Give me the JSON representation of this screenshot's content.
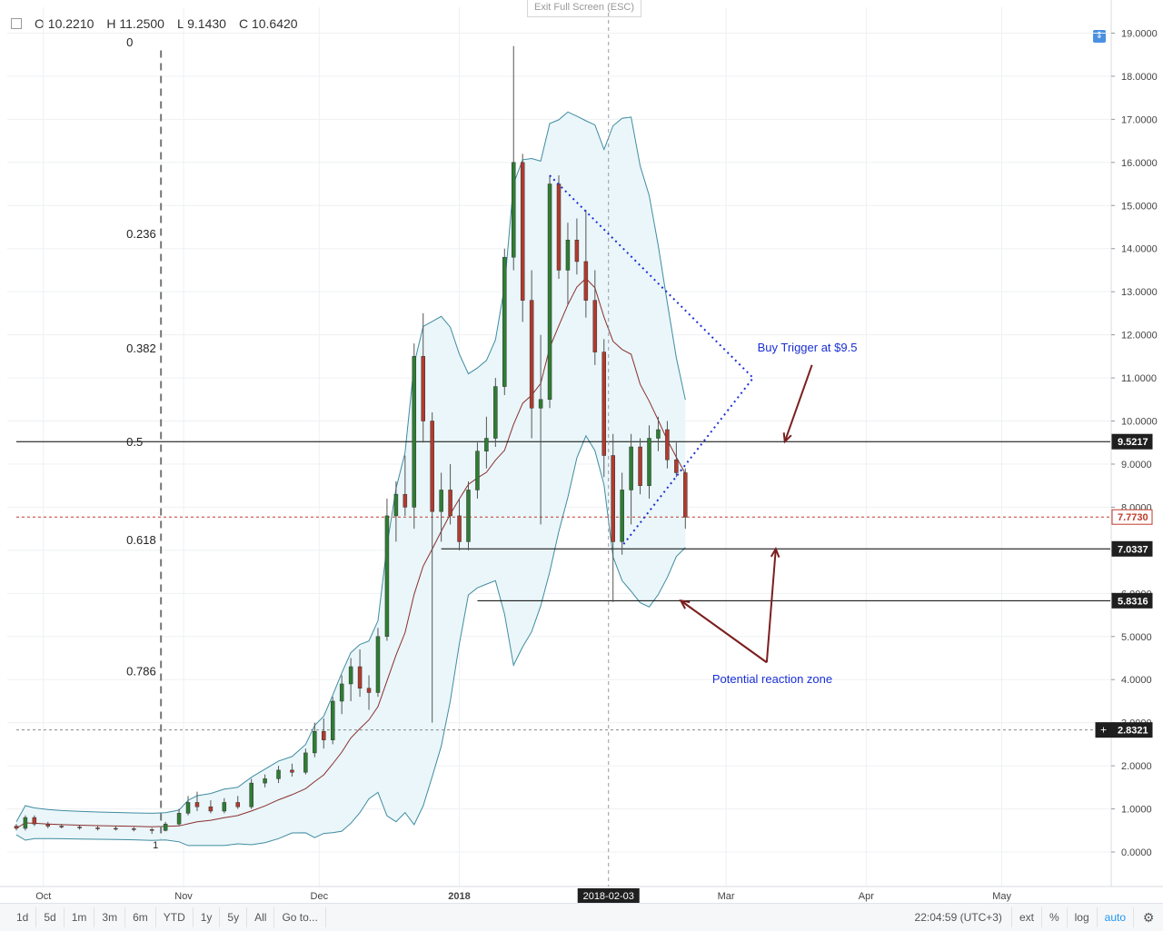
{
  "ohlc": {
    "open": "O 10.2210",
    "high": "H 11.2500",
    "low": "L 9.1430",
    "close": "C 10.6420"
  },
  "exit_fullscreen": "Exit Full Screen (ESC)",
  "scale_icon": "up-down-arrows-icon",
  "toolbar": {
    "ranges": [
      "1d",
      "5d",
      "1m",
      "3m",
      "6m",
      "YTD",
      "1y",
      "5y",
      "All"
    ],
    "goto": "Go to...",
    "time": "22:04:59 (UTC+3)",
    "ext": "ext",
    "percent": "%",
    "log": "log",
    "auto": "auto",
    "settings_icon": "gear-icon"
  },
  "chart_data": {
    "type": "candlestick",
    "y_ticks": [
      "0.0000",
      "1.0000",
      "2.0000",
      "3.0000",
      "4.0000",
      "5.0000",
      "6.0000",
      "7.0000",
      "8.0000",
      "9.0000",
      "10.0000",
      "11.0000",
      "12.0000",
      "13.0000",
      "14.0000",
      "15.0000",
      "16.0000",
      "17.0000",
      "18.0000",
      "19.0000"
    ],
    "ylim": [
      -0.8,
      19.6
    ],
    "x_labels": [
      {
        "label": "Oct",
        "date": "2017-10-01"
      },
      {
        "label": "Nov",
        "date": "2017-11-01"
      },
      {
        "label": "Dec",
        "date": "2017-12-01"
      },
      {
        "label": "2018",
        "date": "2018-01-01"
      },
      {
        "label": "Mar",
        "date": "2018-03-01"
      },
      {
        "label": "Apr",
        "date": "2018-04-01"
      },
      {
        "label": "May",
        "date": "2018-05-01"
      }
    ],
    "cursor_date": "2018-02-03",
    "cursor_x_date": "2018-02-03",
    "price_labels": [
      {
        "text": "9.5217",
        "value": 9.5217,
        "style": "dark"
      },
      {
        "text": "7.7730",
        "value": 7.773,
        "style": "red"
      },
      {
        "text": "7.0337",
        "value": 7.0337,
        "style": "dark"
      },
      {
        "text": "5.8316",
        "value": 5.8316,
        "style": "dark"
      },
      {
        "text": "2.8321",
        "value": 2.8321,
        "style": "cursor"
      }
    ],
    "fib_levels": [
      {
        "label": "0",
        "value": 18.8
      },
      {
        "label": "0.236",
        "value": 14.35
      },
      {
        "label": "0.382",
        "value": 11.7
      },
      {
        "label": "0.5",
        "value": 9.5217
      },
      {
        "label": "0.618",
        "value": 7.25
      },
      {
        "label": "0.786",
        "value": 4.2
      }
    ],
    "hlines": [
      {
        "value": 9.5217,
        "from": "2017-09-25",
        "to": "2018-05-25",
        "color": "#000000"
      },
      {
        "value": 7.0337,
        "from": "2017-12-28",
        "to": "2018-05-25",
        "color": "#000000"
      },
      {
        "value": 5.8316,
        "from": "2018-01-05",
        "to": "2018-05-25",
        "color": "#000000"
      },
      {
        "value": 7.773,
        "from": "2017-09-25",
        "to": "2018-05-25",
        "color": "#c0392b",
        "dash": true
      },
      {
        "value": 2.8321,
        "from": "2017-09-25",
        "to": "2018-05-25",
        "color": "#888888",
        "dash": true
      }
    ],
    "annotations": [
      {
        "text": "Buy Trigger at $9.5",
        "date": "2018-03-20",
        "value": 11.7
      },
      {
        "text": "Potential reaction zone",
        "date": "2018-03-10",
        "value": 4.0
      }
    ],
    "candles": [
      {
        "t": "2017-09-25",
        "o": 0.6,
        "h": 0.65,
        "l": 0.5,
        "c": 0.55
      },
      {
        "t": "2017-09-27",
        "o": 0.55,
        "h": 0.85,
        "l": 0.5,
        "c": 0.8
      },
      {
        "t": "2017-09-29",
        "o": 0.8,
        "h": 0.85,
        "l": 0.6,
        "c": 0.65
      },
      {
        "t": "2017-10-02",
        "o": 0.65,
        "h": 0.7,
        "l": 0.55,
        "c": 0.6
      },
      {
        "t": "2017-10-05",
        "o": 0.6,
        "h": 0.65,
        "l": 0.55,
        "c": 0.58
      },
      {
        "t": "2017-10-09",
        "o": 0.58,
        "h": 0.62,
        "l": 0.52,
        "c": 0.56
      },
      {
        "t": "2017-10-13",
        "o": 0.56,
        "h": 0.6,
        "l": 0.5,
        "c": 0.55
      },
      {
        "t": "2017-10-17",
        "o": 0.55,
        "h": 0.6,
        "l": 0.5,
        "c": 0.54
      },
      {
        "t": "2017-10-21",
        "o": 0.54,
        "h": 0.58,
        "l": 0.48,
        "c": 0.52
      },
      {
        "t": "2017-10-25",
        "o": 0.52,
        "h": 0.56,
        "l": 0.42,
        "c": 0.5
      },
      {
        "t": "2017-10-28",
        "o": 0.5,
        "h": 0.7,
        "l": 0.48,
        "c": 0.65
      },
      {
        "t": "2017-10-31",
        "o": 0.65,
        "h": 1.0,
        "l": 0.6,
        "c": 0.9
      },
      {
        "t": "2017-11-02",
        "o": 0.9,
        "h": 1.3,
        "l": 0.85,
        "c": 1.15
      },
      {
        "t": "2017-11-04",
        "o": 1.15,
        "h": 1.4,
        "l": 0.95,
        "c": 1.05
      },
      {
        "t": "2017-11-07",
        "o": 1.05,
        "h": 1.2,
        "l": 0.9,
        "c": 0.95
      },
      {
        "t": "2017-11-10",
        "o": 0.95,
        "h": 1.25,
        "l": 0.9,
        "c": 1.15
      },
      {
        "t": "2017-11-13",
        "o": 1.15,
        "h": 1.3,
        "l": 1.0,
        "c": 1.05
      },
      {
        "t": "2017-11-16",
        "o": 1.05,
        "h": 1.7,
        "l": 1.0,
        "c": 1.6
      },
      {
        "t": "2017-11-19",
        "o": 1.6,
        "h": 1.8,
        "l": 1.5,
        "c": 1.7
      },
      {
        "t": "2017-11-22",
        "o": 1.7,
        "h": 2.0,
        "l": 1.6,
        "c": 1.9
      },
      {
        "t": "2017-11-25",
        "o": 1.9,
        "h": 2.05,
        "l": 1.75,
        "c": 1.85
      },
      {
        "t": "2017-11-28",
        "o": 1.85,
        "h": 2.4,
        "l": 1.8,
        "c": 2.3
      },
      {
        "t": "2017-11-30",
        "o": 2.3,
        "h": 3.0,
        "l": 2.2,
        "c": 2.8
      },
      {
        "t": "2017-12-02",
        "o": 2.8,
        "h": 3.1,
        "l": 2.4,
        "c": 2.6
      },
      {
        "t": "2017-12-04",
        "o": 2.6,
        "h": 3.6,
        "l": 2.5,
        "c": 3.5
      },
      {
        "t": "2017-12-06",
        "o": 3.5,
        "h": 4.1,
        "l": 3.2,
        "c": 3.9
      },
      {
        "t": "2017-12-08",
        "o": 3.9,
        "h": 4.5,
        "l": 3.5,
        "c": 4.3
      },
      {
        "t": "2017-12-10",
        "o": 4.3,
        "h": 4.7,
        "l": 3.6,
        "c": 3.8
      },
      {
        "t": "2017-12-12",
        "o": 3.8,
        "h": 4.1,
        "l": 3.3,
        "c": 3.7
      },
      {
        "t": "2017-12-14",
        "o": 3.7,
        "h": 5.2,
        "l": 3.6,
        "c": 5.0
      },
      {
        "t": "2017-12-16",
        "o": 5.0,
        "h": 8.2,
        "l": 4.9,
        "c": 7.8
      },
      {
        "t": "2017-12-18",
        "o": 7.8,
        "h": 8.6,
        "l": 7.2,
        "c": 8.3
      },
      {
        "t": "2017-12-20",
        "o": 8.3,
        "h": 9.2,
        "l": 7.8,
        "c": 8.0
      },
      {
        "t": "2017-12-22",
        "o": 8.0,
        "h": 11.8,
        "l": 7.5,
        "c": 11.5
      },
      {
        "t": "2017-12-24",
        "o": 11.5,
        "h": 12.5,
        "l": 9.5,
        "c": 10.0
      },
      {
        "t": "2017-12-26",
        "o": 10.0,
        "h": 10.2,
        "l": 3.0,
        "c": 7.9
      },
      {
        "t": "2017-12-28",
        "o": 7.9,
        "h": 8.8,
        "l": 7.2,
        "c": 8.4
      },
      {
        "t": "2017-12-30",
        "o": 8.4,
        "h": 9.0,
        "l": 7.6,
        "c": 7.8
      },
      {
        "t": "2018-01-01",
        "o": 7.8,
        "h": 8.2,
        "l": 7.0,
        "c": 7.2
      },
      {
        "t": "2018-01-03",
        "o": 7.2,
        "h": 8.6,
        "l": 7.0,
        "c": 8.4
      },
      {
        "t": "2018-01-05",
        "o": 8.4,
        "h": 9.5,
        "l": 8.2,
        "c": 9.3
      },
      {
        "t": "2018-01-07",
        "o": 9.3,
        "h": 10.1,
        "l": 8.9,
        "c": 9.6
      },
      {
        "t": "2018-01-09",
        "o": 9.6,
        "h": 11.0,
        "l": 9.4,
        "c": 10.8
      },
      {
        "t": "2018-01-11",
        "o": 10.8,
        "h": 14.0,
        "l": 10.6,
        "c": 13.8
      },
      {
        "t": "2018-01-13",
        "o": 13.8,
        "h": 18.7,
        "l": 13.5,
        "c": 16.0
      },
      {
        "t": "2018-01-15",
        "o": 16.0,
        "h": 16.2,
        "l": 12.3,
        "c": 12.8
      },
      {
        "t": "2018-01-17",
        "o": 12.8,
        "h": 13.5,
        "l": 9.6,
        "c": 10.3
      },
      {
        "t": "2018-01-19",
        "o": 10.3,
        "h": 12.0,
        "l": 7.6,
        "c": 10.5
      },
      {
        "t": "2018-01-21",
        "o": 10.5,
        "h": 15.7,
        "l": 10.3,
        "c": 15.5
      },
      {
        "t": "2018-01-23",
        "o": 15.5,
        "h": 15.7,
        "l": 13.3,
        "c": 13.5
      },
      {
        "t": "2018-01-25",
        "o": 13.5,
        "h": 14.6,
        "l": 12.7,
        "c": 14.2
      },
      {
        "t": "2018-01-27",
        "o": 14.2,
        "h": 14.7,
        "l": 13.4,
        "c": 13.7
      },
      {
        "t": "2018-01-29",
        "o": 13.7,
        "h": 14.9,
        "l": 12.4,
        "c": 12.8
      },
      {
        "t": "2018-01-31",
        "o": 12.8,
        "h": 13.5,
        "l": 11.3,
        "c": 11.6
      },
      {
        "t": "2018-02-02",
        "o": 11.6,
        "h": 11.9,
        "l": 8.7,
        "c": 9.2
      },
      {
        "t": "2018-02-04",
        "o": 9.2,
        "h": 9.7,
        "l": 5.8,
        "c": 7.2
      },
      {
        "t": "2018-02-06",
        "o": 7.2,
        "h": 8.8,
        "l": 6.9,
        "c": 8.4
      },
      {
        "t": "2018-02-08",
        "o": 8.4,
        "h": 9.7,
        "l": 7.6,
        "c": 9.4
      },
      {
        "t": "2018-02-10",
        "o": 9.4,
        "h": 9.6,
        "l": 8.3,
        "c": 8.5
      },
      {
        "t": "2018-02-12",
        "o": 8.5,
        "h": 9.9,
        "l": 8.2,
        "c": 9.6
      },
      {
        "t": "2018-02-14",
        "o": 9.6,
        "h": 10.1,
        "l": 9.3,
        "c": 9.8
      },
      {
        "t": "2018-02-16",
        "o": 9.8,
        "h": 10.0,
        "l": 8.9,
        "c": 9.1
      },
      {
        "t": "2018-02-18",
        "o": 9.1,
        "h": 9.5,
        "l": 8.7,
        "c": 8.8
      },
      {
        "t": "2018-02-20",
        "o": 8.8,
        "h": 8.9,
        "l": 7.5,
        "c": 7.77
      }
    ]
  }
}
